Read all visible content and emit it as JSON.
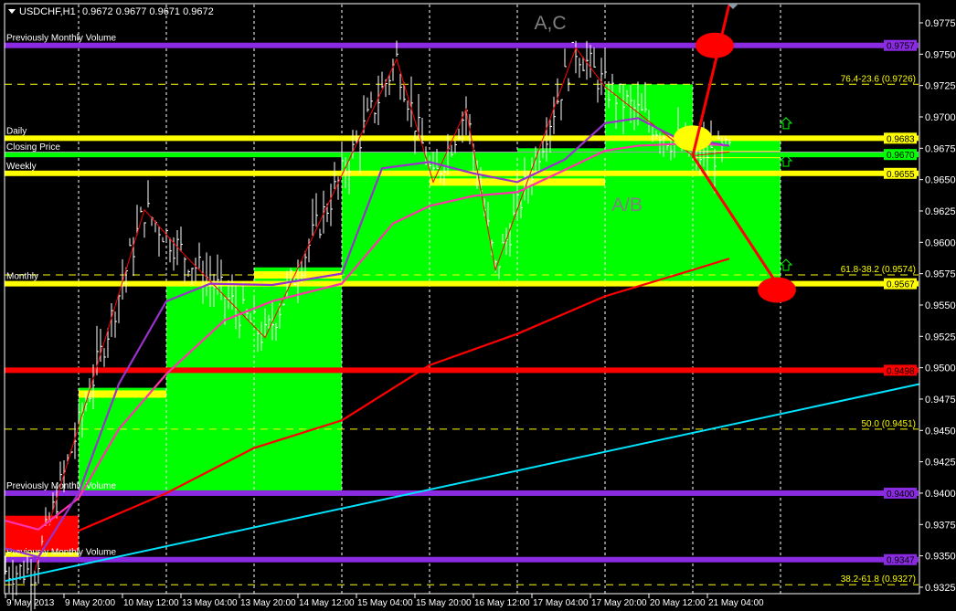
{
  "header": {
    "symbol": "USDCHF,H1",
    "ohlc": "0.9672 0.9677 0.9671 0.9672"
  },
  "chart_data": {
    "type": "candlestick-bars",
    "symbol": "USDCHF",
    "timeframe": "H1",
    "ylim": [
      0.93,
      0.979
    ],
    "y_ticks": [
      "0.9775",
      "0.9750",
      "0.9725",
      "0.9700",
      "0.9675",
      "0.9650",
      "0.9625",
      "0.9600",
      "0.9575",
      "0.9550",
      "0.9525",
      "0.9500",
      "0.9475",
      "0.9450",
      "0.9425",
      "0.9400",
      "0.9375",
      "0.9350",
      "0.9325"
    ],
    "x_ticks": [
      {
        "t": "2013-05-09 04:00",
        "label": "9 May 2013"
      },
      {
        "t": "2013-05-09 20:00",
        "label": "9 May 20:00"
      },
      {
        "t": "2013-05-10 12:00",
        "label": "10 May 12:00"
      },
      {
        "t": "2013-05-13 04:00",
        "label": "13 May 04:00"
      },
      {
        "t": "2013-05-13 20:00",
        "label": "13 May 20:00"
      },
      {
        "t": "2013-05-14 12:00",
        "label": "14 May 12:00"
      },
      {
        "t": "2013-05-15 04:00",
        "label": "15 May 04:00"
      },
      {
        "t": "2013-05-15 20:00",
        "label": "15 May 20:00"
      },
      {
        "t": "2013-05-16 12:00",
        "label": "16 May 12:00"
      },
      {
        "t": "2013-05-17 04:00",
        "label": "17 May 04:00"
      },
      {
        "t": "2013-05-17 20:00",
        "label": "17 May 20:00"
      },
      {
        "t": "2013-05-20 12:00",
        "label": "20 May 12:00"
      },
      {
        "t": "2013-05-21 04:00",
        "label": "21 May 04:00"
      }
    ],
    "day_separators": [
      "2013-05-10 00:00",
      "2013-05-13 00:00",
      "2013-05-14 00:00",
      "2013-05-15 00:00",
      "2013-05-16 00:00",
      "2013-05-17 00:00",
      "2013-05-20 00:00",
      "2013-05-21 00:00",
      "2013-05-22 00:00"
    ],
    "levels": [
      {
        "price": 0.9757,
        "label": "Previously Monthly Volume",
        "tag": "0.9757",
        "color": "#8a2be2"
      },
      {
        "price": 0.9683,
        "label": "Daily",
        "tag": "0.9683",
        "color": "#ffff00"
      },
      {
        "price": 0.967,
        "label": "Closing Price",
        "tag": "0.9670",
        "color": "#00ff00"
      },
      {
        "price": 0.9655,
        "label": "Weekly",
        "tag": "0.9655",
        "color": "#ffff00"
      },
      {
        "price": 0.9567,
        "label": "Monthly",
        "tag": "0.9567",
        "color": "#ffff00"
      },
      {
        "price": 0.9498,
        "label": "",
        "tag": "0.9498",
        "color": "#ff0000"
      },
      {
        "price": 0.94,
        "label": "Previously Monthly Volume",
        "tag": "0.9400",
        "color": "#8a2be2"
      },
      {
        "price": 0.9347,
        "label": "Previously Monthly Volume",
        "tag": "0.9347",
        "color": "#8a2be2"
      }
    ],
    "fibonacci": [
      {
        "price": 0.9726,
        "label": "76.4-23.6 (0.9726)"
      },
      {
        "price": 0.9574,
        "label": "61.8-38.2 (0.9574)"
      },
      {
        "price": 0.9451,
        "label": "50.0 (0.9451)"
      },
      {
        "price": 0.9327,
        "label": "38.2-61.8 (0.9327)"
      }
    ],
    "bid_price": 0.9672,
    "range_boxes": [
      {
        "from": "2013-05-09 04:00",
        "to": "2013-05-10 00:00",
        "high": 0.9382,
        "low": 0.9354,
        "color": "#ff0000",
        "band": 0.935
      },
      {
        "from": "2013-05-10 00:00",
        "to": "2013-05-13 00:00",
        "high": 0.9484,
        "low": 0.94,
        "color": "#00ff00",
        "band": 0.9479
      },
      {
        "from": "2013-05-13 00:00",
        "to": "2013-05-14 00:00",
        "high": 0.9567,
        "low": 0.94,
        "color": "#00ff00"
      },
      {
        "from": "2013-05-14 00:00",
        "to": "2013-05-15 00:00",
        "high": 0.958,
        "low": 0.94,
        "color": "#00ff00",
        "band": 0.9574
      },
      {
        "from": "2013-05-15 00:00",
        "to": "2013-05-16 00:00",
        "high": 0.9669,
        "low": 0.9567,
        "color": "#00ff00"
      },
      {
        "from": "2013-05-16 00:00",
        "to": "2013-05-17 00:00",
        "high": 0.9669,
        "low": 0.9567,
        "color": "#00ff00",
        "band": 0.9648
      },
      {
        "from": "2013-05-17 00:00",
        "to": "2013-05-20 00:00",
        "high": 0.9675,
        "low": 0.9567,
        "color": "#00ff00",
        "band": 0.9648
      },
      {
        "from": "2013-05-20 00:00",
        "to": "2013-05-21 00:00",
        "high": 0.9726,
        "low": 0.9567,
        "color": "#00ff00"
      },
      {
        "from": "2013-05-21 00:00",
        "to": "2013-05-22 00:00",
        "high": 0.9683,
        "low": 0.9567,
        "color": "#00ff00",
        "band": 0.967
      }
    ],
    "zigzag": [
      [
        "2013-05-09 12:00",
        0.9338
      ],
      [
        "2013-05-10 18:00",
        0.9626
      ],
      [
        "2013-05-13 04:00",
        0.9593
      ],
      [
        "2013-05-14 03:00",
        0.9524
      ],
      [
        "2013-05-15 15:00",
        0.9746
      ],
      [
        "2013-05-16 01:00",
        0.9648
      ],
      [
        "2013-05-16 10:00",
        0.9706
      ],
      [
        "2013-05-16 18:00",
        0.9578
      ],
      [
        "2013-05-17 16:00",
        0.9755
      ],
      [
        "2013-05-20 00:00",
        0.9724
      ],
      [
        "2013-05-21 00:00",
        0.9669
      ],
      [
        "2013-05-21 10:00",
        0.9672
      ]
    ],
    "series": [
      {
        "color": "#ff0000",
        "points": [
          [
            "2013-05-09 04:00",
            0.9364
          ],
          [
            "2013-05-10 00:00",
            0.937
          ],
          [
            "2013-05-13 00:00",
            0.94
          ],
          [
            "2013-05-14 00:00",
            0.9436
          ],
          [
            "2013-05-15 00:00",
            0.9458
          ],
          [
            "2013-05-16 00:00",
            0.9502
          ],
          [
            "2013-05-17 00:00",
            0.9527
          ],
          [
            "2013-05-20 00:00",
            0.9557
          ],
          [
            "2013-05-21 00:00",
            0.9578
          ],
          [
            "2013-05-21 10:00",
            0.9587
          ]
        ]
      },
      {
        "color": "#ff33aa",
        "points": [
          [
            "2013-05-09 04:00",
            0.9378
          ],
          [
            "2013-05-09 13:00",
            0.9371
          ],
          [
            "2013-05-10 00:00",
            0.9396
          ],
          [
            "2013-05-10 11:00",
            0.9451
          ],
          [
            "2013-05-13 00:00",
            0.9495
          ],
          [
            "2013-05-13 16:00",
            0.9538
          ],
          [
            "2013-05-14 05:00",
            0.9553
          ],
          [
            "2013-05-15 00:00",
            0.9567
          ],
          [
            "2013-05-15 14:00",
            0.9615
          ],
          [
            "2013-05-16 00:00",
            0.9629
          ],
          [
            "2013-05-16 12:00",
            0.9637
          ],
          [
            "2013-05-17 00:00",
            0.964
          ],
          [
            "2013-05-17 11:00",
            0.9655
          ],
          [
            "2013-05-20 00:00",
            0.9673
          ],
          [
            "2013-05-20 09:00",
            0.9677
          ],
          [
            "2013-05-21 00:00",
            0.9679
          ],
          [
            "2013-05-21 10:00",
            0.9677
          ]
        ]
      },
      {
        "color": "#9932cc",
        "points": [
          [
            "2013-05-09 04:00",
            0.9356
          ],
          [
            "2013-05-09 13:00",
            0.9349
          ],
          [
            "2013-05-10 00:00",
            0.94
          ],
          [
            "2013-05-10 11:00",
            0.9487
          ],
          [
            "2013-05-13 00:00",
            0.9553
          ],
          [
            "2013-05-13 12:00",
            0.9567
          ],
          [
            "2013-05-14 05:00",
            0.9566
          ],
          [
            "2013-05-15 00:00",
            0.9575
          ],
          [
            "2013-05-15 11:00",
            0.9659
          ],
          [
            "2013-05-16 00:00",
            0.9664
          ],
          [
            "2013-05-16 12:00",
            0.9655
          ],
          [
            "2013-05-17 00:00",
            0.9648
          ],
          [
            "2013-05-17 13:00",
            0.9666
          ],
          [
            "2013-05-20 00:00",
            0.9695
          ],
          [
            "2013-05-20 09:00",
            0.9699
          ],
          [
            "2013-05-20 19:00",
            0.9684
          ],
          [
            "2013-05-21 10:00",
            0.9677
          ]
        ]
      }
    ],
    "trendline": {
      "color": "#00e5ff",
      "from": [
        "2013-05-09 04:00",
        0.933
      ],
      "to": [
        "2013-05-23 14:00",
        0.9487
      ]
    },
    "projections": [
      {
        "from": [
          "2013-05-21 00:00",
          0.9669
        ],
        "to": [
          "2013-05-21 10:00",
          0.979
        ]
      },
      {
        "from": [
          "2013-05-21 00:00",
          0.9669
        ],
        "to": [
          "2013-05-21 23:00",
          0.9567
        ]
      }
    ],
    "targets": [
      {
        "at": [
          "2013-05-21 06:00",
          0.9757
        ],
        "color": "#ff0000"
      },
      {
        "at": [
          "2013-05-21 23:00",
          0.9562
        ],
        "color": "#ff0000"
      },
      {
        "at": [
          "2013-05-21 00:00",
          0.9683
        ],
        "color": "#ffff00"
      }
    ],
    "signals": [
      {
        "at": [
          "2013-05-22 00:00",
          0.9695
        ],
        "icon": "arrow-up-icon"
      },
      {
        "at": [
          "2013-05-22 00:00",
          0.9665
        ],
        "icon": "arrow-up-icon"
      },
      {
        "at": [
          "2013-05-22 00:00",
          0.9582
        ],
        "icon": "arrow-up-icon"
      }
    ],
    "annotations": [
      {
        "text": "A,C",
        "at": [
          "2013-05-17 09:00",
          0.977
        ]
      },
      {
        "text": "A/B",
        "at": [
          "2013-05-20 06:00",
          0.9625
        ]
      }
    ]
  }
}
